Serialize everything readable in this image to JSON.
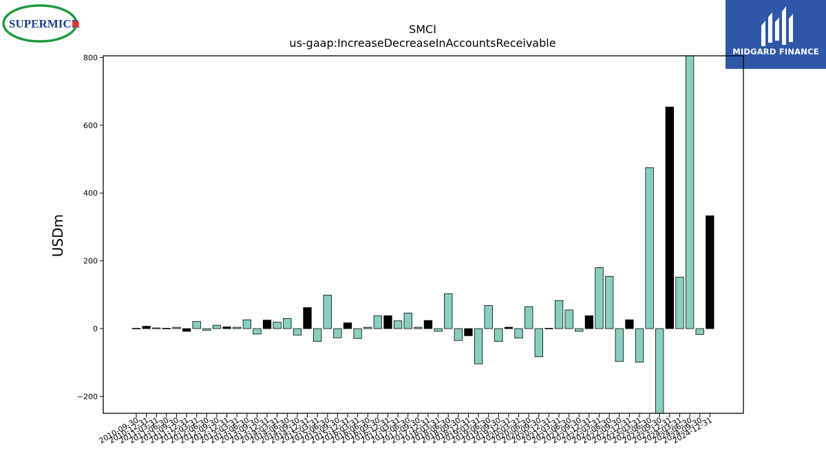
{
  "logos": {
    "left_text": "SUPERMICR",
    "right_text": "MIDGARD FINANCE"
  },
  "colors": {
    "bar_positive": "#88cfc0",
    "bar_highlight": "#000000",
    "supermicro_blue": "#1d3f91",
    "supermicro_green": "#1a9a3c",
    "supermicro_red": "#e0302a",
    "midgard_bg": "#2f57a8"
  },
  "chart_data": {
    "type": "bar",
    "title": "SMCI",
    "subtitle": "us-gaap:IncreaseDecreaseInAccountsReceivable",
    "xlabel": "",
    "ylabel": "USDm",
    "ylim": [
      -250,
      805
    ],
    "yticks": [
      -200,
      0,
      200,
      400,
      600,
      800
    ],
    "yticklabels": [
      "−200",
      "0",
      "200",
      "400",
      "600",
      "800"
    ],
    "grid": false,
    "categories": [
      "2010-09-30",
      "2010-12-31",
      "2011-03-31",
      "2011-06-30",
      "2011-09-30",
      "2011-12-31",
      "2012-03-31",
      "2012-06-30",
      "2012-09-30",
      "2012-12-31",
      "2013-03-31",
      "2013-06-30",
      "2013-09-30",
      "2013-12-31",
      "2014-03-31",
      "2014-06-30",
      "2014-09-30",
      "2014-12-31",
      "2015-03-31",
      "2015-06-30",
      "2015-09-30",
      "2015-12-31",
      "2016-03-31",
      "2016-06-30",
      "2016-09-30",
      "2016-12-31",
      "2017-03-31",
      "2017-06-30",
      "2017-09-30",
      "2017-12-31",
      "2018-03-31",
      "2018-06-30",
      "2018-09-30",
      "2018-12-31",
      "2019-03-31",
      "2019-06-30",
      "2019-09-30",
      "2019-12-31",
      "2020-03-31",
      "2020-06-30",
      "2020-09-30",
      "2020-12-31",
      "2021-03-31",
      "2021-06-30",
      "2021-09-30",
      "2021-12-31",
      "2022-03-31",
      "2022-06-30",
      "2022-09-30",
      "2022-12-31",
      "2023-03-31",
      "2023-06-30",
      "2023-09-30",
      "2023-12-31",
      "2024-03-31",
      "2024-06-30",
      "2024-09-30",
      "2024-12-31"
    ],
    "values": [
      1,
      7,
      2,
      1,
      4,
      -8,
      21,
      -5,
      10,
      5,
      4,
      26,
      -16,
      25,
      19,
      30,
      -19,
      62,
      -38,
      99,
      -27,
      17,
      -29,
      4,
      38,
      38,
      23,
      46,
      4,
      24,
      -8,
      103,
      -35,
      -21,
      -104,
      68,
      -38,
      4,
      -28,
      65,
      -83,
      1,
      83,
      55,
      -8,
      38,
      180,
      154,
      -97,
      26,
      -99,
      475,
      -250,
      654,
      152,
      805,
      -17,
      333
    ],
    "highlight": [
      false,
      true,
      false,
      false,
      false,
      true,
      false,
      false,
      false,
      true,
      false,
      false,
      false,
      true,
      false,
      false,
      false,
      true,
      false,
      false,
      false,
      true,
      false,
      false,
      false,
      true,
      false,
      false,
      false,
      true,
      false,
      false,
      false,
      true,
      false,
      false,
      false,
      true,
      false,
      false,
      false,
      true,
      false,
      false,
      false,
      true,
      false,
      false,
      false,
      true,
      false,
      false,
      false,
      true,
      false,
      false,
      false,
      true
    ]
  }
}
